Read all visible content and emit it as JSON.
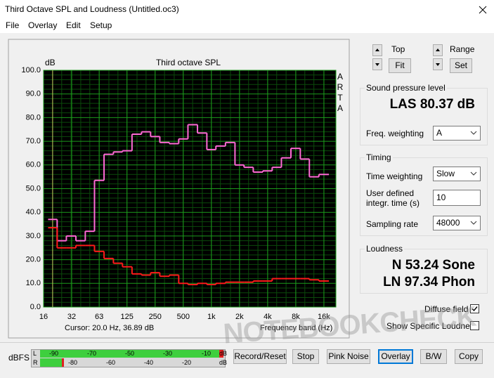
{
  "window": {
    "title": "Third Octave SPL and Loudness (Untitled.oc3)"
  },
  "menu": [
    "File",
    "Overlay",
    "Edit",
    "Setup"
  ],
  "chart_data": {
    "type": "step",
    "title": "Third octave SPL",
    "y_label": "dB",
    "x_label": "Frequency band (Hz)",
    "side_label": "ARTA",
    "xlog": true,
    "grid": true,
    "x": [
      20,
      25,
      31.5,
      40,
      50,
      63,
      80,
      100,
      125,
      160,
      200,
      250,
      315,
      400,
      500,
      630,
      800,
      1000,
      1250,
      1600,
      2000,
      2500,
      3150,
      4000,
      5000,
      6300,
      8000,
      10000,
      12500,
      16000
    ],
    "series": [
      {
        "color": "#ff6ad5",
        "values": [
          37,
          28,
          30,
          28,
          32,
          53.5,
          64.5,
          65.5,
          66,
          73,
          74,
          72,
          69.5,
          69,
          71,
          77,
          73.5,
          66.5,
          68,
          69.5,
          60,
          59,
          57,
          57.5,
          59,
          63,
          67,
          62.5,
          55,
          56
        ]
      },
      {
        "color": "#ff1a1a",
        "values": [
          33.5,
          25,
          25,
          26,
          26,
          23.5,
          20.5,
          18.5,
          17,
          14,
          13.5,
          14.5,
          13,
          13.5,
          10,
          9.5,
          10,
          9.5,
          10,
          10.5,
          10.5,
          10.5,
          11,
          11,
          12,
          12,
          12,
          12,
          11.5,
          11
        ]
      }
    ],
    "xlim": [
      16,
      21500
    ],
    "xticks": [
      16,
      32,
      63,
      125,
      250,
      500,
      {
        "value": 1000,
        "label": "1k"
      },
      {
        "value": 2000,
        "label": "2k"
      },
      {
        "value": 4000,
        "label": "4k"
      },
      {
        "value": 8000,
        "label": "8k"
      },
      {
        "value": 16000,
        "label": "16k"
      }
    ],
    "ylim": [
      0,
      100
    ],
    "yticks": [
      {
        "value": 0,
        "label": "0.0"
      },
      {
        "value": 10,
        "label": "10.0"
      },
      {
        "value": 20,
        "label": "20.0"
      },
      {
        "value": 30,
        "label": "30.0"
      },
      {
        "value": 40,
        "label": "40.0"
      },
      {
        "value": 50,
        "label": "50.0"
      },
      {
        "value": 60,
        "label": "60.0"
      },
      {
        "value": 70,
        "label": "70.0"
      },
      {
        "value": 80,
        "label": "80.0"
      },
      {
        "value": 90,
        "label": "90.0"
      },
      {
        "value": 100,
        "label": "100.0"
      }
    ],
    "cursor": {
      "x": 20,
      "label": "Cursor:  20.0 Hz, 36.89 dB"
    }
  },
  "controls": {
    "top_label": "Top",
    "fit": "Fit",
    "range_label": "Range",
    "set": "Set"
  },
  "spl": {
    "group": "Sound pressure level",
    "reading": "LAS 80.37 dB",
    "freq_weighting_label": "Freq. weighting",
    "freq_weighting": "A"
  },
  "timing": {
    "group": "Timing",
    "time_weighting_label": "Time weighting",
    "time_weighting": "Slow",
    "integr_time_label": "User defined integr. time (s)",
    "integr_time": "10",
    "sampling_rate_label": "Sampling rate",
    "sampling_rate": "48000"
  },
  "loudness": {
    "group": "Loudness",
    "n": "N 53.24 Sone",
    "ln": "LN 97.34 Phon",
    "diffuse_field": "Diffuse field",
    "show_specific": "Show Specific Loudness"
  },
  "meter": {
    "label": "dBFS",
    "channels": [
      "L",
      "R"
    ],
    "top_scale": [
      "-90",
      "-70",
      "-50",
      "-30",
      "-10"
    ],
    "bottom_scale": [
      "-80",
      "-60",
      "-40",
      "-20"
    ],
    "unit": "dB"
  },
  "buttons": [
    "Record/Reset",
    "Stop",
    "Pink Noise",
    "Overlay",
    "B/W",
    "Copy"
  ],
  "watermark": "NOTEBOOKCHECK"
}
